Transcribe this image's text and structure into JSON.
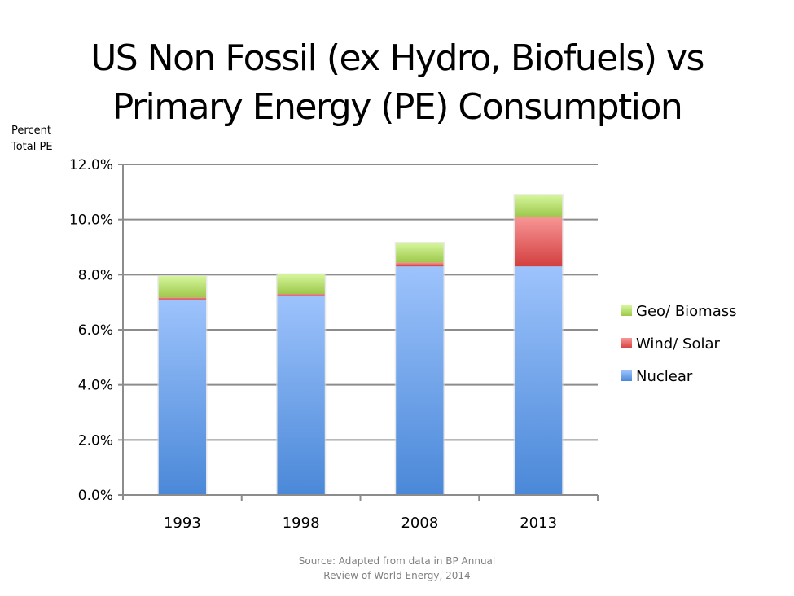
{
  "slide": {
    "title_line_1": "US Non Fossil (ex Hydro, Biofuels) vs",
    "title_line_2": "Primary Energy (PE) Consumption",
    "ylabel_line_1": "Percent",
    "ylabel_line_2": "Total PE",
    "source_line_1": "Source: Adapted from data in BP Annual",
    "source_line_2": "Review of World Energy, 2014"
  },
  "chart_data": {
    "type": "bar",
    "stacked": true,
    "title": "US Non Fossil (ex Hydro, Biofuels) vs Primary Energy (PE) Consumption",
    "xlabel": "",
    "ylabel": "Percent Total PE",
    "categories": [
      "1993",
      "1998",
      "2008",
      "2013"
    ],
    "series": [
      {
        "name": "Nuclear",
        "color": "#4a88d8",
        "color_light": "#9dc3fc",
        "values": [
          7.1,
          7.25,
          8.3,
          8.3
        ]
      },
      {
        "name": "Wind/ Solar",
        "color": "#d33f3f",
        "color_light": "#f89696",
        "values": [
          0.07,
          0.05,
          0.14,
          1.8
        ]
      },
      {
        "name": "Geo/ Biomass",
        "color": "#9dc84a",
        "color_light": "#d6f69d",
        "values": [
          0.78,
          0.72,
          0.72,
          0.8
        ]
      }
    ],
    "ylim": [
      0,
      12
    ],
    "yticks": [
      0,
      2,
      4,
      6,
      8,
      10,
      12
    ],
    "ytick_labels": [
      "0.0%",
      "2.0%",
      "4.0%",
      "6.0%",
      "8.0%",
      "10.0%",
      "12.0%"
    ],
    "grid": true,
    "legend": {
      "position": "right",
      "order": [
        "Geo/ Biomass",
        "Wind/ Solar",
        "Nuclear"
      ]
    }
  }
}
